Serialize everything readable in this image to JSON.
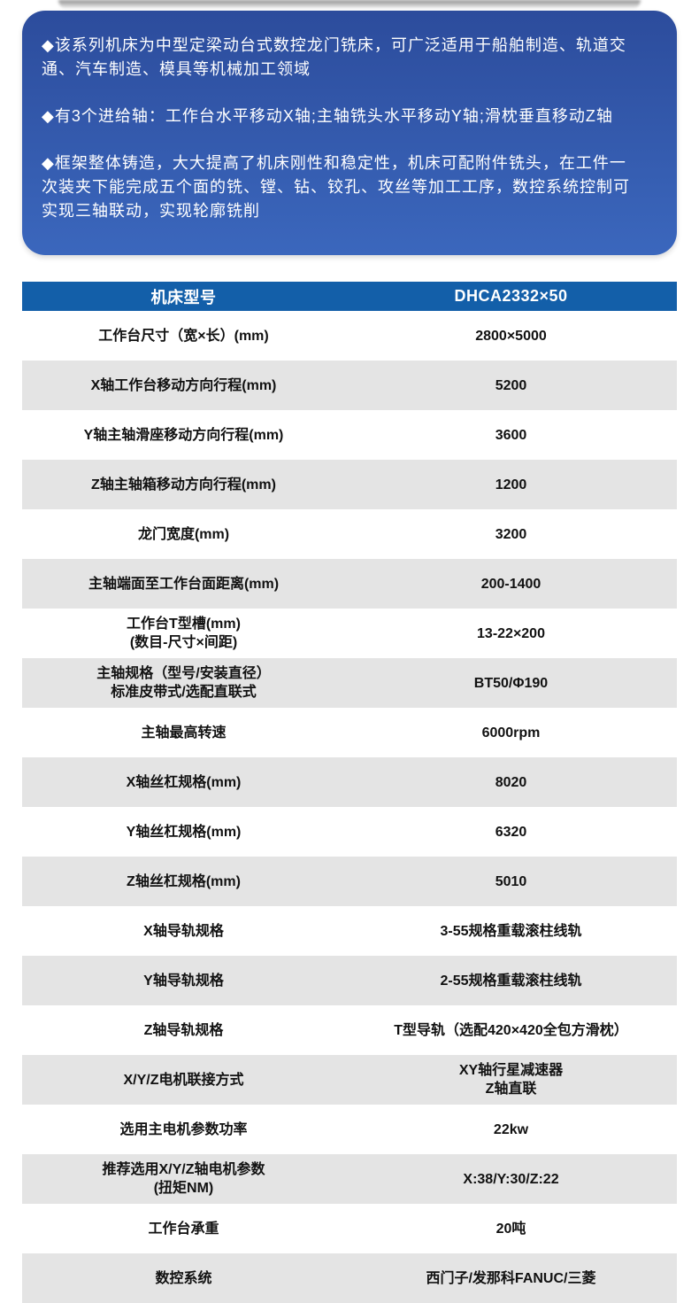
{
  "colors": {
    "page_bg": "#ffffff",
    "card_gradient_top": "#2c4c9c",
    "card_gradient_bottom": "#3b67bd",
    "table_header_blue": "#135fa9",
    "row_gray": "#e4e4e4",
    "row_white": "#ffffff",
    "intro_text": "#ffffff",
    "table_text": "#111111"
  },
  "intro": {
    "bullets": [
      "◆该系列机床为中型定梁动台式数控龙门铣床，可广泛适用于船舶制造、轨道交\n通、汽车制造、模具等机械加工领域",
      "◆有3个进给轴：工作台水平移动X轴;主轴铣头水平移动Y轴;滑枕垂直移动Z轴",
      "◆框架整体铸造，大大提高了机床刚性和稳定性，机床可配附件铣头，在工件一\n次装夹下能完成五个面的铣、镗、钻、铰孔、攻丝等加工工序，数控系统控制可\n实现三轴联动，实现轮廓铣削"
    ]
  },
  "table": {
    "header": {
      "parameter_label": "机床型号",
      "model_value": "DHCA2332×50"
    },
    "rows": [
      {
        "label": "工作台尺寸（宽×长）(mm)",
        "value": "2800×5000"
      },
      {
        "label": "X轴工作台移动方向行程(mm)",
        "value": "5200"
      },
      {
        "label": "Y轴主轴滑座移动方向行程(mm)",
        "value": "3600"
      },
      {
        "label": "Z轴主轴箱移动方向行程(mm)",
        "value": "1200"
      },
      {
        "label": "龙门宽度(mm)",
        "value": "3200"
      },
      {
        "label": "主轴端面至工作台面距离(mm)",
        "value": "200-1400"
      },
      {
        "label": "工作台T型槽(mm)\n(数目-尺寸×间距)",
        "value": "13-22×200"
      },
      {
        "label": "主轴规格（型号/安装直径）\n标准皮带式/选配直联式",
        "value": "BT50/Φ190"
      },
      {
        "label": "主轴最高转速",
        "value": "6000rpm"
      },
      {
        "label": "X轴丝杠规格(mm)",
        "value": "8020"
      },
      {
        "label": "Y轴丝杠规格(mm)",
        "value": "6320"
      },
      {
        "label": "Z轴丝杠规格(mm)",
        "value": "5010"
      },
      {
        "label": "X轴导轨规格",
        "value": "3-55规格重载滚柱线轨"
      },
      {
        "label": "Y轴导轨规格",
        "value": "2-55规格重载滚柱线轨"
      },
      {
        "label": "Z轴导轨规格",
        "value": "T型导轨（选配420×420全包方滑枕）"
      },
      {
        "label": "X/Y/Z电机联接方式",
        "value": "XY轴行星减速器\nZ轴直联"
      },
      {
        "label": "选用主电机参数功率",
        "value": "22kw"
      },
      {
        "label": "推荐选用X/Y/Z轴电机参数\n(扭矩NM)",
        "value": "X:38/Y:30/Z:22"
      },
      {
        "label": "工作台承重",
        "value": "20吨"
      },
      {
        "label": "数控系统",
        "value": "西门子/发那科FANUC/三菱"
      }
    ]
  }
}
